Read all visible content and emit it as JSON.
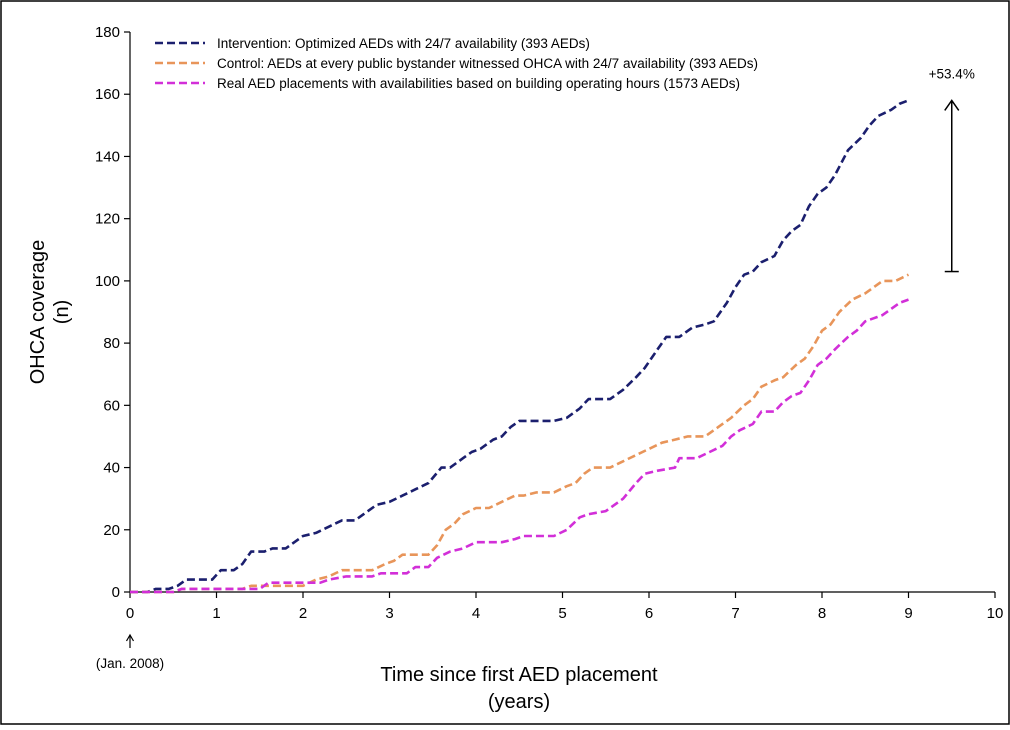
{
  "chart_data": {
    "type": "line",
    "title": "",
    "xlabel_lines": [
      "Time since first AED placement",
      "(years)"
    ],
    "ylabel_lines": [
      "OHCA coverage",
      "(n)"
    ],
    "xlim": [
      0,
      10
    ],
    "ylim": [
      0,
      180
    ],
    "x_ticks": [
      0,
      1,
      2,
      3,
      4,
      5,
      6,
      7,
      8,
      9,
      10
    ],
    "x_tick_labels": [
      "0",
      "1",
      "2",
      "3",
      "4",
      "5",
      "6",
      "7",
      "8",
      "9",
      "10"
    ],
    "y_ticks": [
      0,
      20,
      40,
      60,
      80,
      100,
      120,
      140,
      160,
      180
    ],
    "y_tick_labels": [
      "0",
      "20",
      "40",
      "60",
      "80",
      "100",
      "120",
      "140",
      "160",
      "180"
    ],
    "grid": false,
    "legend_position": "top-left",
    "start_note": "(Jan. 2008)",
    "annotation": {
      "text": "+53.4%",
      "x": 9.5,
      "y_from": 103,
      "y_to": 158
    },
    "series": [
      {
        "name": "Intervention: Optimized AEDs with 24/7 availability (393 AEDs)",
        "color": "#1b1f6e",
        "points": [
          [
            0,
            0
          ],
          [
            0.2,
            0
          ],
          [
            0.3,
            1
          ],
          [
            0.45,
            1
          ],
          [
            0.55,
            2
          ],
          [
            0.65,
            4
          ],
          [
            0.95,
            4
          ],
          [
            1.05,
            7
          ],
          [
            1.2,
            7
          ],
          [
            1.3,
            9
          ],
          [
            1.4,
            13
          ],
          [
            1.55,
            13
          ],
          [
            1.65,
            14
          ],
          [
            1.8,
            14
          ],
          [
            1.9,
            16
          ],
          [
            2.0,
            18
          ],
          [
            2.15,
            19
          ],
          [
            2.3,
            21
          ],
          [
            2.45,
            23
          ],
          [
            2.6,
            23
          ],
          [
            2.7,
            25
          ],
          [
            2.85,
            28
          ],
          [
            3.0,
            29
          ],
          [
            3.15,
            31
          ],
          [
            3.3,
            33
          ],
          [
            3.45,
            35
          ],
          [
            3.6,
            40
          ],
          [
            3.7,
            40
          ],
          [
            3.85,
            43
          ],
          [
            3.95,
            45
          ],
          [
            4.05,
            46
          ],
          [
            4.2,
            49
          ],
          [
            4.3,
            50
          ],
          [
            4.4,
            53
          ],
          [
            4.5,
            55
          ],
          [
            4.9,
            55
          ],
          [
            5.05,
            56
          ],
          [
            5.2,
            59
          ],
          [
            5.3,
            62
          ],
          [
            5.55,
            62
          ],
          [
            5.7,
            65
          ],
          [
            5.85,
            69
          ],
          [
            5.95,
            72
          ],
          [
            6.1,
            78
          ],
          [
            6.2,
            82
          ],
          [
            6.35,
            82
          ],
          [
            6.5,
            85
          ],
          [
            6.65,
            86
          ],
          [
            6.75,
            87
          ],
          [
            6.9,
            93
          ],
          [
            7.0,
            98
          ],
          [
            7.1,
            102
          ],
          [
            7.2,
            103
          ],
          [
            7.3,
            106
          ],
          [
            7.45,
            108
          ],
          [
            7.55,
            113
          ],
          [
            7.65,
            116
          ],
          [
            7.75,
            118
          ],
          [
            7.85,
            124
          ],
          [
            7.95,
            128
          ],
          [
            8.05,
            130
          ],
          [
            8.15,
            134
          ],
          [
            8.3,
            142
          ],
          [
            8.45,
            146
          ],
          [
            8.55,
            150
          ],
          [
            8.65,
            153
          ],
          [
            8.8,
            155
          ],
          [
            8.9,
            157
          ],
          [
            9.0,
            158
          ]
        ]
      },
      {
        "name": "Control: AEDs at every public bystander witnessed OHCA with 24/7 availability (393 AEDs)",
        "color": "#e8955a",
        "points": [
          [
            0,
            0
          ],
          [
            0.5,
            0
          ],
          [
            0.6,
            1
          ],
          [
            1.3,
            1
          ],
          [
            1.4,
            2
          ],
          [
            2.0,
            2
          ],
          [
            2.15,
            4
          ],
          [
            2.3,
            5
          ],
          [
            2.45,
            7
          ],
          [
            2.8,
            7
          ],
          [
            2.95,
            9
          ],
          [
            3.05,
            10
          ],
          [
            3.15,
            12
          ],
          [
            3.45,
            12
          ],
          [
            3.55,
            15
          ],
          [
            3.65,
            20
          ],
          [
            3.75,
            22
          ],
          [
            3.85,
            25
          ],
          [
            4.0,
            27
          ],
          [
            4.15,
            27
          ],
          [
            4.3,
            29
          ],
          [
            4.45,
            31
          ],
          [
            4.55,
            31
          ],
          [
            4.7,
            32
          ],
          [
            4.9,
            32
          ],
          [
            5.05,
            34
          ],
          [
            5.15,
            35
          ],
          [
            5.25,
            38
          ],
          [
            5.35,
            40
          ],
          [
            5.55,
            40
          ],
          [
            5.7,
            42
          ],
          [
            5.85,
            44
          ],
          [
            6.0,
            46
          ],
          [
            6.15,
            48
          ],
          [
            6.3,
            49
          ],
          [
            6.45,
            50
          ],
          [
            6.65,
            50
          ],
          [
            6.8,
            53
          ],
          [
            6.95,
            56
          ],
          [
            7.1,
            60
          ],
          [
            7.2,
            62
          ],
          [
            7.3,
            66
          ],
          [
            7.45,
            68
          ],
          [
            7.55,
            69
          ],
          [
            7.7,
            73
          ],
          [
            7.8,
            75
          ],
          [
            7.9,
            79
          ],
          [
            8.0,
            84
          ],
          [
            8.1,
            86
          ],
          [
            8.2,
            90
          ],
          [
            8.35,
            94
          ],
          [
            8.5,
            96
          ],
          [
            8.6,
            98
          ],
          [
            8.7,
            100
          ],
          [
            8.85,
            100
          ],
          [
            9.0,
            102
          ]
        ]
      },
      {
        "name": "Real AED placements with availabilities based on building operating hours (1573 AEDs)",
        "color": "#d22fd8",
        "points": [
          [
            0,
            0
          ],
          [
            0.5,
            0
          ],
          [
            0.6,
            1
          ],
          [
            1.5,
            1
          ],
          [
            1.6,
            3
          ],
          [
            2.2,
            3
          ],
          [
            2.3,
            4
          ],
          [
            2.5,
            5
          ],
          [
            2.8,
            5
          ],
          [
            2.9,
            6
          ],
          [
            3.2,
            6
          ],
          [
            3.3,
            8
          ],
          [
            3.45,
            8
          ],
          [
            3.55,
            11
          ],
          [
            3.7,
            13
          ],
          [
            3.85,
            14
          ],
          [
            4.0,
            16
          ],
          [
            4.3,
            16
          ],
          [
            4.45,
            17
          ],
          [
            4.55,
            18
          ],
          [
            4.9,
            18
          ],
          [
            5.05,
            20
          ],
          [
            5.2,
            24
          ],
          [
            5.3,
            25
          ],
          [
            5.5,
            26
          ],
          [
            5.6,
            28
          ],
          [
            5.7,
            30
          ],
          [
            5.85,
            35
          ],
          [
            5.95,
            38
          ],
          [
            6.1,
            39
          ],
          [
            6.3,
            40
          ],
          [
            6.35,
            43
          ],
          [
            6.55,
            43
          ],
          [
            6.7,
            45
          ],
          [
            6.85,
            47
          ],
          [
            6.95,
            50
          ],
          [
            7.05,
            52
          ],
          [
            7.2,
            54
          ],
          [
            7.3,
            58
          ],
          [
            7.45,
            58
          ],
          [
            7.55,
            61
          ],
          [
            7.65,
            63
          ],
          [
            7.75,
            64
          ],
          [
            7.85,
            68
          ],
          [
            7.95,
            73
          ],
          [
            8.05,
            75
          ],
          [
            8.15,
            78
          ],
          [
            8.3,
            82
          ],
          [
            8.4,
            84
          ],
          [
            8.5,
            87
          ],
          [
            8.6,
            88
          ],
          [
            8.7,
            89
          ],
          [
            8.8,
            91
          ],
          [
            8.9,
            93
          ],
          [
            9.0,
            94
          ]
        ]
      }
    ]
  }
}
